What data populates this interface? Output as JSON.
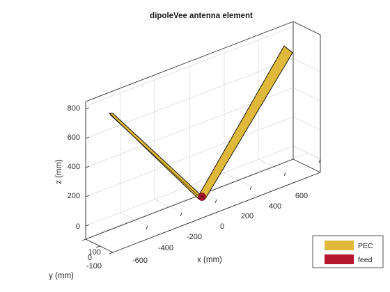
{
  "title": "dipoleVee antenna element",
  "axes": {
    "x_label": "x (mm)",
    "y_label": "y (mm)",
    "z_label": "z (mm)",
    "x_ticks": [
      "-600",
      "-400",
      "-200",
      "0",
      "200",
      "400",
      "600"
    ],
    "y_ticks": [
      "100",
      "0",
      "-100"
    ],
    "z_ticks": [
      "800",
      "600",
      "400",
      "200",
      "0"
    ]
  },
  "legend": {
    "items": [
      {
        "label": "PEC",
        "color": "#e0b93a"
      },
      {
        "label": "feed",
        "color": "#b5172e"
      }
    ]
  },
  "colors": {
    "pec": "#e0b93a",
    "feed": "#b5172e",
    "edge": "#000000"
  }
}
